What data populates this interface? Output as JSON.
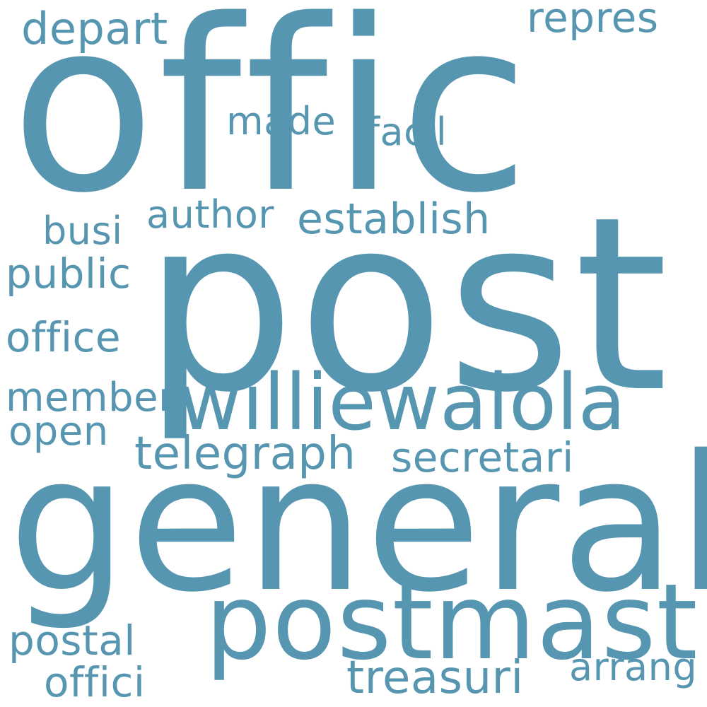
{
  "color": "#5796B0",
  "words": [
    {
      "key": "offic",
      "text": "offic"
    },
    {
      "key": "post",
      "text": "post"
    },
    {
      "key": "general",
      "text": "general"
    },
    {
      "key": "postmast",
      "text": "postmast"
    },
    {
      "key": "williewaiola",
      "text": "williewaiola"
    },
    {
      "key": "depart",
      "text": "depart"
    },
    {
      "key": "repres",
      "text": "repres"
    },
    {
      "key": "made",
      "text": "made"
    },
    {
      "key": "facil",
      "text": "facil"
    },
    {
      "key": "author",
      "text": "author"
    },
    {
      "key": "establish",
      "text": "establish"
    },
    {
      "key": "busi",
      "text": "busi"
    },
    {
      "key": "public",
      "text": "public"
    },
    {
      "key": "office",
      "text": "office"
    },
    {
      "key": "member",
      "text": "member"
    },
    {
      "key": "open",
      "text": "open"
    },
    {
      "key": "telegraph",
      "text": "telegraph"
    },
    {
      "key": "secretari",
      "text": "secretari"
    },
    {
      "key": "postal",
      "text": "postal"
    },
    {
      "key": "offici",
      "text": "offici"
    },
    {
      "key": "treasuri",
      "text": "treasuri"
    },
    {
      "key": "arrang",
      "text": "arrang"
    }
  ]
}
